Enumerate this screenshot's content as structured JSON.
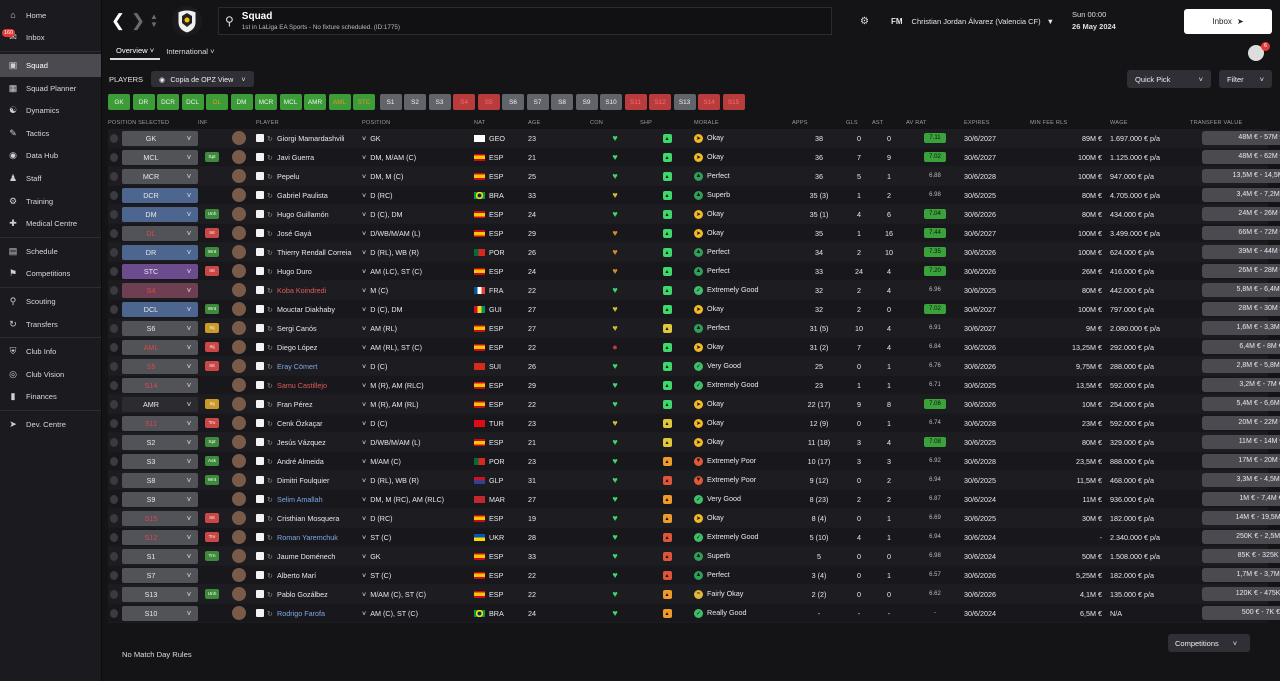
{
  "sidebar": {
    "items": [
      {
        "label": "Home",
        "icon": "home-icon"
      },
      {
        "label": "Inbox",
        "icon": "inbox-icon",
        "badge": "160"
      },
      {
        "label": "Squad",
        "icon": "shirt-icon",
        "active": true
      },
      {
        "label": "Squad Planner",
        "icon": "planner-icon"
      },
      {
        "label": "Dynamics",
        "icon": "dynamics-icon"
      },
      {
        "label": "Tactics",
        "icon": "tactics-icon"
      },
      {
        "label": "Data Hub",
        "icon": "data-icon"
      },
      {
        "label": "Staff",
        "icon": "staff-icon"
      },
      {
        "label": "Training",
        "icon": "training-icon"
      },
      {
        "label": "Medical Centre",
        "icon": "medical-icon"
      },
      {
        "label": "Schedule",
        "icon": "calendar-icon"
      },
      {
        "label": "Competitions",
        "icon": "trophy-icon"
      },
      {
        "label": "Scouting",
        "icon": "scouting-icon"
      },
      {
        "label": "Transfers",
        "icon": "transfers-icon"
      },
      {
        "label": "Club Info",
        "icon": "shield-icon"
      },
      {
        "label": "Club Vision",
        "icon": "vision-icon"
      },
      {
        "label": "Finances",
        "icon": "finances-icon"
      },
      {
        "label": "Dev. Centre",
        "icon": "dev-icon"
      }
    ]
  },
  "header": {
    "title": "Squad",
    "subtitle": "1st in LaLiga EA Sports - No fixture scheduled. (ID:1775)",
    "manager_prefix": "FM",
    "manager": "Christian Jordan Álvarez (Valencia CF)",
    "day": "Sun 00:00",
    "date": "26 May 2024",
    "inbox": "Inbox"
  },
  "subnav": {
    "tabs": [
      "Overview",
      "International"
    ],
    "notif": "6"
  },
  "toolbar": {
    "players_label": "PLAYERS",
    "view": "Copia de OPZ View",
    "quick_pick": "Quick Pick",
    "filter": "Filter"
  },
  "filters": [
    {
      "l": "GK",
      "c": "green"
    },
    {
      "l": "DR",
      "c": "green"
    },
    {
      "l": "DCR",
      "c": "green"
    },
    {
      "l": "DCL",
      "c": "green"
    },
    {
      "l": "DL",
      "c": "orange"
    },
    {
      "l": "DM",
      "c": "green"
    },
    {
      "l": "MCR",
      "c": "green"
    },
    {
      "l": "MCL",
      "c": "green"
    },
    {
      "l": "AMR",
      "c": "green"
    },
    {
      "l": "AML",
      "c": "orange"
    },
    {
      "l": "STC",
      "c": "orange"
    },
    {
      "l": "S1",
      "c": "grey"
    },
    {
      "l": "S2",
      "c": "grey"
    },
    {
      "l": "S3",
      "c": "grey"
    },
    {
      "l": "S4",
      "c": "red"
    },
    {
      "l": "S5",
      "c": "red"
    },
    {
      "l": "S6",
      "c": "grey"
    },
    {
      "l": "S7",
      "c": "grey"
    },
    {
      "l": "S8",
      "c": "grey"
    },
    {
      "l": "S9",
      "c": "grey"
    },
    {
      "l": "S10",
      "c": "grey"
    },
    {
      "l": "S11",
      "c": "red"
    },
    {
      "l": "S12",
      "c": "red"
    },
    {
      "l": "S13",
      "c": "grey"
    },
    {
      "l": "S14",
      "c": "red"
    },
    {
      "l": "S15",
      "c": "red"
    }
  ],
  "columns": [
    "POSITION SELECTED",
    "INF",
    "PLAYER",
    "POSITION",
    "NAT",
    "AGE",
    "CON",
    "SHP",
    "MORALE",
    "APPS",
    "GLS",
    "AST",
    "AV RAT",
    "EXPIRES",
    "MIN FEE RLS",
    "WAGE",
    "TRANSFER VALUE"
  ],
  "rows": [
    {
      "sel": "GK",
      "sc": "",
      "inf": "",
      "name": "Giorgi Mamardashvili",
      "nc": "",
      "pos": "GK",
      "nat": "GEO",
      "age": "23",
      "con": "green",
      "shp": "green",
      "morale": "Okay",
      "mc": "ok",
      "apps": "38",
      "gls": "0",
      "ast": "0",
      "av": "7.11",
      "avh": true,
      "exp": "30/6/2027",
      "fee": "89M €",
      "wage": "1.697.000 € p/a",
      "tv": "48M € - 57M €"
    },
    {
      "sel": "MCL",
      "sc": "",
      "inf": "Spt",
      "ic": "green",
      "name": "Javi Guerra",
      "nc": "",
      "pos": "DM, M/AM (C)",
      "nat": "ESP",
      "age": "21",
      "con": "green",
      "shp": "green",
      "morale": "Okay",
      "mc": "ok",
      "apps": "36",
      "gls": "7",
      "ast": "9",
      "av": "7.02",
      "avh": true,
      "exp": "30/6/2027",
      "fee": "100M €",
      "wage": "1.125.000 € p/a",
      "tv": "48M € - 62M €"
    },
    {
      "sel": "MCR",
      "sc": "",
      "inf": "",
      "name": "Pepelu",
      "nc": "",
      "pos": "DM, M (C)",
      "nat": "ESP",
      "age": "25",
      "con": "green",
      "shp": "green",
      "morale": "Perfect",
      "mc": "perf",
      "apps": "36",
      "gls": "5",
      "ast": "1",
      "av": "6.88",
      "avh": false,
      "exp": "30/6/2028",
      "fee": "100M €",
      "wage": "947.000 € p/a",
      "tv": "13,5M € - 14,5M €"
    },
    {
      "sel": "DCR",
      "sc": "blue",
      "inf": "",
      "name": "Gabriel Paulista",
      "nc": "",
      "pos": "D (RC)",
      "nat": "BRA",
      "age": "33",
      "con": "yellow",
      "shp": "green",
      "morale": "Superb",
      "mc": "perf",
      "apps": "35 (3)",
      "gls": "1",
      "ast": "2",
      "av": "6.98",
      "avh": false,
      "exp": "30/6/2025",
      "fee": "80M €",
      "wage": "4.705.000 € p/a",
      "tv": "3,4M € - 7,2M €"
    },
    {
      "sel": "DM",
      "sc": "blue",
      "inf": "Unh",
      "ic": "green",
      "name": "Hugo Guillamón",
      "nc": "",
      "pos": "D (C), DM",
      "nat": "ESP",
      "age": "24",
      "con": "green",
      "shp": "green",
      "morale": "Okay",
      "mc": "ok",
      "apps": "35 (1)",
      "gls": "4",
      "ast": "6",
      "av": "7.04",
      "avh": true,
      "exp": "30/6/2026",
      "fee": "80M €",
      "wage": "434.000 € p/a",
      "tv": "24M € - 26M €"
    },
    {
      "sel": "DL",
      "sc": "red",
      "inf": "Int",
      "ic": "red",
      "name": "José Gayá",
      "nc": "",
      "pos": "D/WB/M/AM (L)",
      "nat": "ESP",
      "age": "29",
      "con": "orange",
      "shp": "green",
      "morale": "Okay",
      "mc": "ok",
      "apps": "35",
      "gls": "1",
      "ast": "16",
      "av": "7.44",
      "avh": true,
      "exp": "30/6/2027",
      "fee": "100M €",
      "wage": "3.499.000 € p/a",
      "tv": "66M € - 72M €"
    },
    {
      "sel": "DR",
      "sc": "blue",
      "inf": "Wnt",
      "ic": "green",
      "name": "Thierry Rendall Correia",
      "nc": "",
      "pos": "D (RL), WB (R)",
      "nat": "POR",
      "age": "26",
      "con": "orange",
      "shp": "green",
      "morale": "Perfect",
      "mc": "perf",
      "apps": "34",
      "gls": "2",
      "ast": "10",
      "av": "7.35",
      "avh": true,
      "exp": "30/6/2026",
      "fee": "100M €",
      "wage": "624.000 € p/a",
      "tv": "39M € - 44M €"
    },
    {
      "sel": "STC",
      "sc": "purple",
      "inf": "Int",
      "ic": "red",
      "name": "Hugo Duro",
      "nc": "",
      "pos": "AM (LC), ST (C)",
      "nat": "ESP",
      "age": "24",
      "con": "orange",
      "shp": "green",
      "morale": "Perfect",
      "mc": "perf",
      "apps": "33",
      "gls": "24",
      "ast": "4",
      "av": "7.20",
      "avh": true,
      "exp": "30/6/2026",
      "fee": "26M €",
      "wage": "416.000 € p/a",
      "tv": "26M € - 28M €"
    },
    {
      "sel": "S4",
      "sc": "pink",
      "inf": "",
      "name": "Koba Koindredi",
      "nc": "red",
      "pos": "M (C)",
      "nat": "FRA",
      "age": "22",
      "con": "green",
      "shp": "green",
      "morale": "Extremely Good",
      "mc": "good",
      "apps": "32",
      "gls": "2",
      "ast": "4",
      "av": "6.96",
      "avh": false,
      "exp": "30/6/2025",
      "fee": "80M €",
      "wage": "442.000 € p/a",
      "tv": "5,8M € - 6,4M €"
    },
    {
      "sel": "DCL",
      "sc": "blue",
      "inf": "Wnt",
      "ic": "green",
      "name": "Mouctar Diakhaby",
      "nc": "",
      "pos": "D (C), DM",
      "nat": "GUI",
      "age": "27",
      "con": "yellow",
      "shp": "green",
      "morale": "Okay",
      "mc": "ok",
      "apps": "32",
      "gls": "2",
      "ast": "0",
      "av": "7.02",
      "avh": true,
      "exp": "30/6/2027",
      "fee": "100M €",
      "wage": "797.000 € p/a",
      "tv": "28M € - 30M €"
    },
    {
      "sel": "S6",
      "sc": "",
      "inf": "Inj",
      "ic": "gold",
      "name": "Sergi Canós",
      "nc": "",
      "pos": "AM (RL)",
      "nat": "ESP",
      "age": "27",
      "con": "yellow",
      "shp": "yellow",
      "morale": "Perfect",
      "mc": "perf",
      "apps": "31 (5)",
      "gls": "10",
      "ast": "4",
      "av": "6.91",
      "avh": false,
      "exp": "30/6/2027",
      "fee": "9M €",
      "wage": "2.080.000 € p/a",
      "tv": "1,6M € - 3,3M €"
    },
    {
      "sel": "AML",
      "sc": "red",
      "inf": "Inj",
      "ic": "red",
      "name": "Diego López",
      "nc": "",
      "pos": "AM (RL), ST (C)",
      "nat": "ESP",
      "age": "22",
      "con": "red",
      "shp": "green",
      "morale": "Okay",
      "mc": "ok",
      "apps": "31 (2)",
      "gls": "7",
      "ast": "4",
      "av": "6.84",
      "avh": false,
      "exp": "30/6/2026",
      "fee": "13,25M €",
      "wage": "292.000 € p/a",
      "tv": "6,4M € - 8M €"
    },
    {
      "sel": "S5",
      "sc": "red",
      "inf": "Int",
      "ic": "red",
      "name": "Eray Cömert",
      "nc": "blue",
      "pos": "D (C)",
      "nat": "SUI",
      "age": "26",
      "con": "green",
      "shp": "green",
      "morale": "Very Good",
      "mc": "good",
      "apps": "25",
      "gls": "0",
      "ast": "1",
      "av": "6.76",
      "avh": false,
      "exp": "30/6/2026",
      "fee": "9,75M €",
      "wage": "288.000 € p/a",
      "tv": "2,8M € - 5,8M €"
    },
    {
      "sel": "S14",
      "sc": "red",
      "inf": "",
      "name": "Samu Castillejo",
      "nc": "red",
      "pos": "M (R), AM (RLC)",
      "nat": "ESP",
      "age": "29",
      "con": "green",
      "shp": "green",
      "morale": "Extremely Good",
      "mc": "good",
      "apps": "23",
      "gls": "1",
      "ast": "1",
      "av": "6.71",
      "avh": false,
      "exp": "30/6/2025",
      "fee": "13,5M €",
      "wage": "592.000 € p/a",
      "tv": "3,2M € - 7M €"
    },
    {
      "sel": "AMR",
      "sc": "dark",
      "inf": "Inj",
      "ic": "gold",
      "name": "Fran Pérez",
      "nc": "",
      "pos": "M (R), AM (RL)",
      "nat": "ESP",
      "age": "22",
      "con": "green",
      "shp": "green",
      "morale": "Okay",
      "mc": "ok",
      "apps": "22 (17)",
      "gls": "9",
      "ast": "8",
      "av": "7.06",
      "avh": true,
      "exp": "30/6/2026",
      "fee": "10M €",
      "wage": "254.000 € p/a",
      "tv": "5,4M € - 6,6M €"
    },
    {
      "sel": "S11",
      "sc": "red",
      "inf": "Trv",
      "ic": "red",
      "name": "Cenk Özkaçar",
      "nc": "",
      "pos": "D (C)",
      "nat": "TUR",
      "age": "23",
      "con": "yellow",
      "shp": "yellow",
      "morale": "Okay",
      "mc": "ok",
      "apps": "12 (9)",
      "gls": "0",
      "ast": "1",
      "av": "6.74",
      "avh": false,
      "exp": "30/6/2028",
      "fee": "23M €",
      "wage": "592.000 € p/a",
      "tv": "20M € - 22M €"
    },
    {
      "sel": "S2",
      "sc": "",
      "inf": "Spt",
      "ic": "green",
      "name": "Jesús Vázquez",
      "nc": "",
      "pos": "D/WB/M/AM (L)",
      "nat": "ESP",
      "age": "21",
      "con": "green",
      "shp": "yellow",
      "morale": "Okay",
      "mc": "ok",
      "apps": "11 (18)",
      "gls": "3",
      "ast": "4",
      "av": "7.08",
      "avh": true,
      "exp": "30/6/2025",
      "fee": "80M €",
      "wage": "329.000 € p/a",
      "tv": "11M € - 14M €"
    },
    {
      "sel": "S3",
      "sc": "",
      "inf": "Ask",
      "ic": "green",
      "name": "André Almeida",
      "nc": "",
      "pos": "M/AM (C)",
      "nat": "POR",
      "age": "23",
      "con": "green",
      "shp": "orange",
      "morale": "Extremely Poor",
      "mc": "vpoor",
      "apps": "10 (17)",
      "gls": "3",
      "ast": "3",
      "av": "6.92",
      "avh": false,
      "exp": "30/6/2028",
      "fee": "23,5M €",
      "wage": "888.000 € p/a",
      "tv": "17M € - 20M €"
    },
    {
      "sel": "S8",
      "sc": "",
      "inf": "Wnt",
      "ic": "green",
      "name": "Dimitri Foulquier",
      "nc": "",
      "pos": "D (RL), WB (R)",
      "nat": "GLP",
      "age": "31",
      "con": "green",
      "shp": "red",
      "morale": "Extremely Poor",
      "mc": "vpoor",
      "apps": "9 (12)",
      "gls": "0",
      "ast": "2",
      "av": "6.94",
      "avh": false,
      "exp": "30/6/2025",
      "fee": "11,5M €",
      "wage": "468.000 € p/a",
      "tv": "3,3M € - 4,5M €"
    },
    {
      "sel": "S9",
      "sc": "",
      "inf": "",
      "name": "Selim Amallah",
      "nc": "blue",
      "pos": "DM, M (RC), AM (RLC)",
      "nat": "MAR",
      "age": "27",
      "con": "green",
      "shp": "orange",
      "morale": "Very Good",
      "mc": "good",
      "apps": "8 (23)",
      "gls": "2",
      "ast": "2",
      "av": "6.87",
      "avh": false,
      "exp": "30/6/2024",
      "fee": "11M €",
      "wage": "936.000 € p/a",
      "tv": "1M € - 7,4M €"
    },
    {
      "sel": "S15",
      "sc": "red",
      "inf": "Int",
      "ic": "red",
      "name": "Cristhian Mosquera",
      "nc": "",
      "pos": "D (RC)",
      "nat": "ESP",
      "age": "19",
      "con": "green",
      "shp": "orange",
      "morale": "Okay",
      "mc": "ok",
      "apps": "8 (4)",
      "gls": "0",
      "ast": "1",
      "av": "6.69",
      "avh": false,
      "exp": "30/6/2025",
      "fee": "30M €",
      "wage": "182.000 € p/a",
      "tv": "14M € - 19,5M €"
    },
    {
      "sel": "S12",
      "sc": "red",
      "inf": "Trv",
      "ic": "red",
      "name": "Roman Yaremchuk",
      "nc": "blue",
      "pos": "ST (C)",
      "nat": "UKR",
      "age": "28",
      "con": "green",
      "shp": "red",
      "morale": "Extremely Good",
      "mc": "good",
      "apps": "5 (10)",
      "gls": "4",
      "ast": "1",
      "av": "6.94",
      "avh": false,
      "exp": "30/6/2024",
      "fee": "-",
      "wage": "2.340.000 € p/a",
      "tv": "250K € - 2,5M €"
    },
    {
      "sel": "S1",
      "sc": "",
      "inf": "Trn",
      "ic": "green",
      "name": "Jaume Doménech",
      "nc": "",
      "pos": "GK",
      "nat": "ESP",
      "age": "33",
      "con": "green",
      "shp": "red",
      "morale": "Superb",
      "mc": "perf",
      "apps": "5",
      "gls": "0",
      "ast": "0",
      "av": "6.98",
      "avh": false,
      "exp": "30/6/2024",
      "fee": "50M €",
      "wage": "1.508.000 € p/a",
      "tv": "85K € - 325K €"
    },
    {
      "sel": "S7",
      "sc": "",
      "inf": "",
      "name": "Alberto Marí",
      "nc": "",
      "pos": "ST (C)",
      "nat": "ESP",
      "age": "22",
      "con": "green",
      "shp": "red",
      "morale": "Perfect",
      "mc": "perf",
      "apps": "3 (4)",
      "gls": "0",
      "ast": "1",
      "av": "6.57",
      "avh": false,
      "exp": "30/6/2026",
      "fee": "5,25M €",
      "wage": "182.000 € p/a",
      "tv": "1,7M € - 3,7M €"
    },
    {
      "sel": "S13",
      "sc": "",
      "inf": "Unh",
      "ic": "green",
      "name": "Pablo Gozálbez",
      "nc": "",
      "pos": "M/AM (C), ST (C)",
      "nat": "ESP",
      "age": "22",
      "con": "green",
      "shp": "orange",
      "morale": "Fairly Okay",
      "mc": "fair",
      "apps": "2 (2)",
      "gls": "0",
      "ast": "0",
      "av": "6.62",
      "avh": false,
      "exp": "30/6/2026",
      "fee": "4,1M €",
      "wage": "135.000 € p/a",
      "tv": "120K € - 475K €"
    },
    {
      "sel": "S10",
      "sc": "",
      "inf": "",
      "name": "Rodrigo Farofa",
      "nc": "blue",
      "pos": "AM (C), ST (C)",
      "nat": "BRA",
      "age": "24",
      "con": "green",
      "shp": "orange",
      "morale": "Really Good",
      "mc": "good",
      "apps": "-",
      "gls": "-",
      "ast": "-",
      "av": "-",
      "avh": false,
      "exp": "30/6/2024",
      "fee": "6,5M €",
      "wage": "N/A",
      "tv": "500 € - 7K €"
    }
  ],
  "footer": {
    "no_rules": "No Match Day Rules",
    "competitions": "Competitions"
  }
}
